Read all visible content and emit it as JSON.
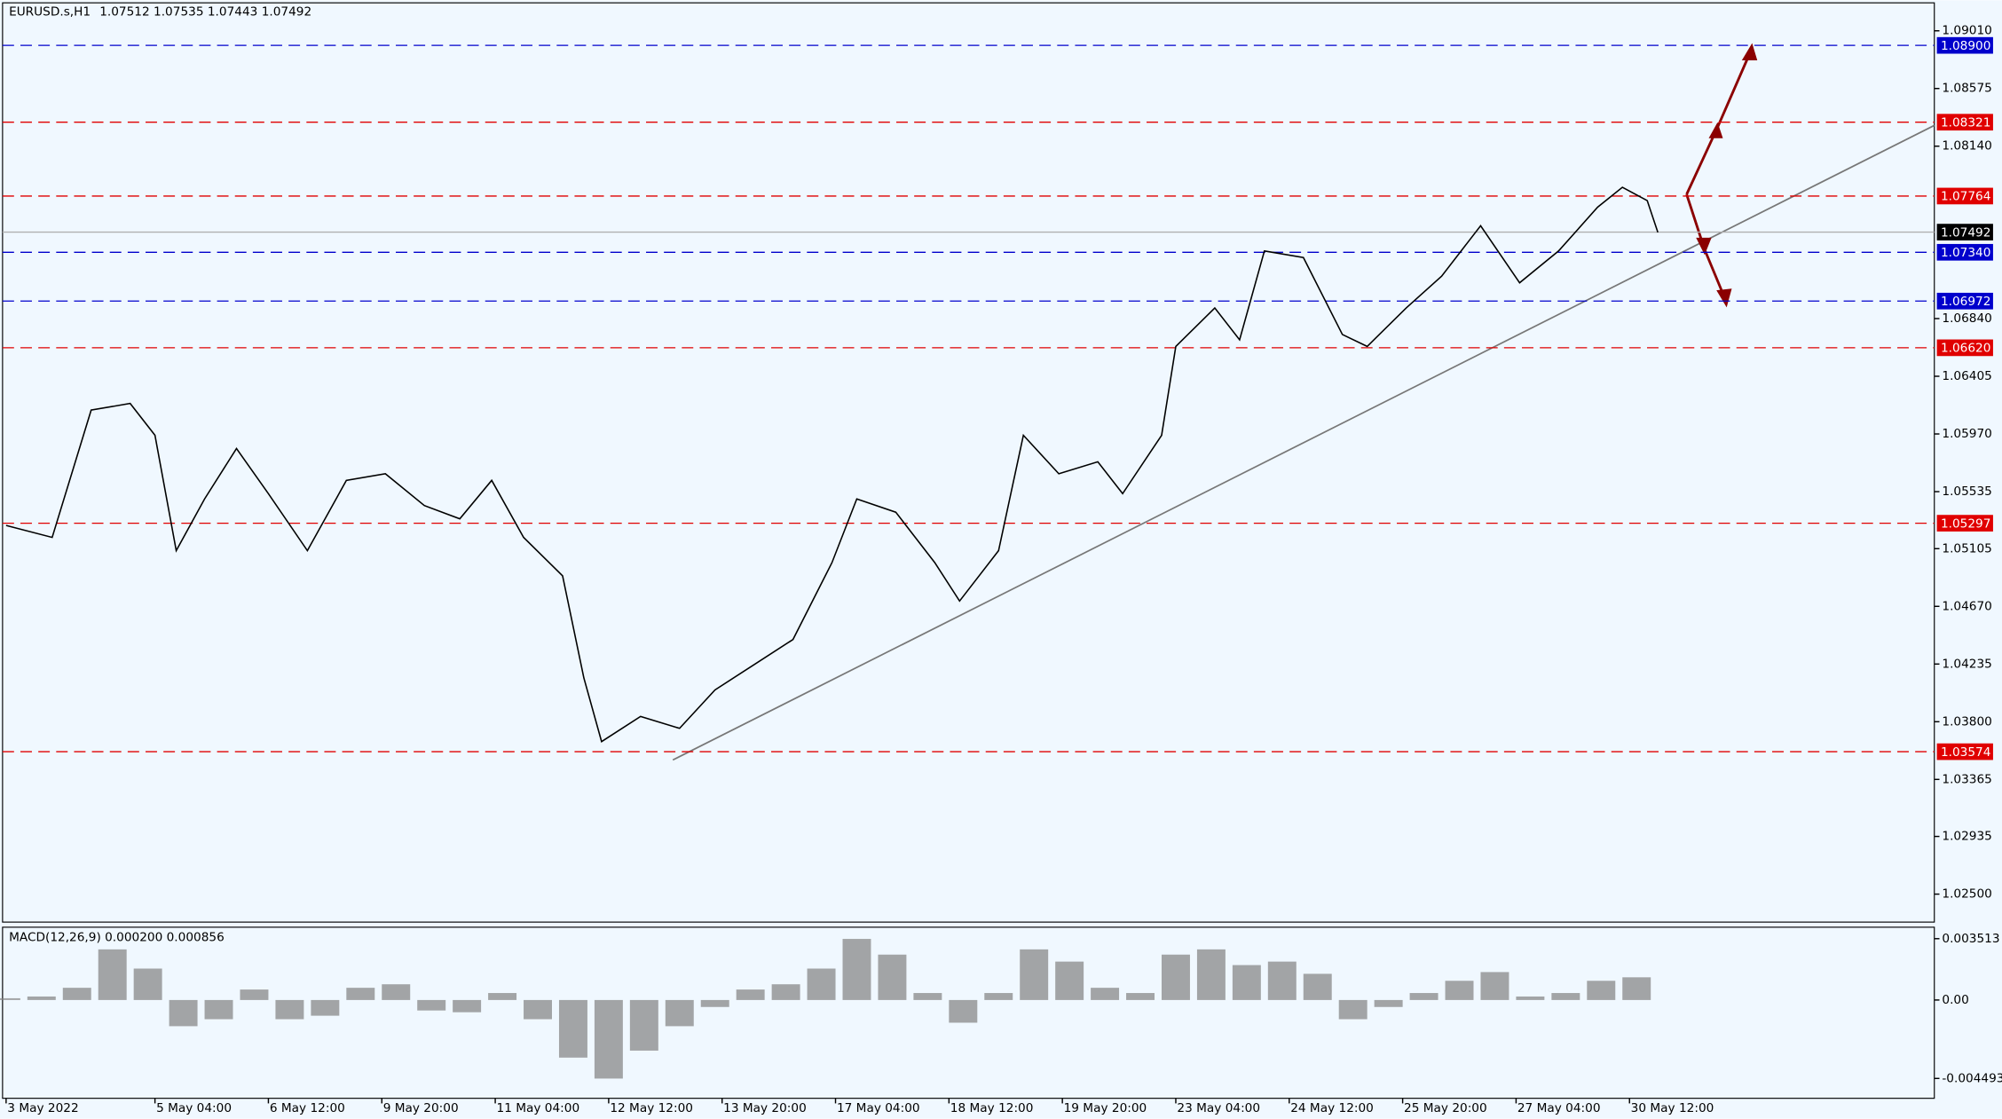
{
  "chart_data": [
    {
      "type": "line",
      "title": "EURUSD.s,H1",
      "ohlc": [
        1.07512,
        1.07535,
        1.07443,
        1.07492
      ],
      "xlim": [
        -1,
        544
      ],
      "ylim": [
        1.02289,
        1.09221
      ],
      "xticks": [
        {
          "value": 0,
          "label": "3 May 2022"
        },
        {
          "value": 42,
          "label": "5 May 04:00"
        },
        {
          "value": 74,
          "label": "6 May 12:00"
        },
        {
          "value": 106,
          "label": "9 May 20:00"
        },
        {
          "value": 138,
          "label": "11 May 04:00"
        },
        {
          "value": 170,
          "label": "12 May 12:00"
        },
        {
          "value": 202,
          "label": "13 May 20:00"
        },
        {
          "value": 234,
          "label": "17 May 04:00"
        },
        {
          "value": 266,
          "label": "18 May 12:00"
        },
        {
          "value": 298,
          "label": "19 May 20:00"
        },
        {
          "value": 330,
          "label": "23 May 04:00"
        },
        {
          "value": 362,
          "label": "24 May 12:00"
        },
        {
          "value": 394,
          "label": "25 May 20:00"
        },
        {
          "value": 426,
          "label": "27 May 04:00"
        },
        {
          "value": 458,
          "label": "30 May 12:00"
        }
      ],
      "yticks": [
        {
          "value": 1.0901,
          "label": "1.09010"
        },
        1.08575,
        {
          "value": 1.0814,
          "label": "1.08140"
        },
        {
          "value": 1.0684,
          "label": "1.06840"
        },
        1.06405,
        {
          "value": 1.0597,
          "label": "1.05970"
        },
        1.05535,
        1.05105,
        {
          "value": 1.0467,
          "label": "1.04670"
        },
        1.04235,
        {
          "value": 1.038,
          "label": "1.03800"
        },
        1.03365,
        1.02935,
        {
          "value": 1.025,
          "label": "1.02500"
        }
      ],
      "levels": [
        {
          "value": 1.089,
          "label": "1.08900",
          "color": "#0000cc"
        },
        {
          "value": 1.08321,
          "label": "1.08321",
          "color": "#e00000"
        },
        {
          "value": 1.07764,
          "label": "1.07764",
          "color": "#e00000"
        },
        {
          "value": 1.07492,
          "label": "1.07492",
          "color": "#000000"
        },
        {
          "value": 1.0734,
          "label": "1.07340",
          "color": "#0000cc"
        },
        {
          "value": 1.06972,
          "label": "1.06972",
          "color": "#0000cc"
        },
        {
          "value": 1.0662,
          "label": "1.06620",
          "color": "#e00000"
        },
        {
          "value": 1.05297,
          "label": "1.05297",
          "color": "#e00000"
        },
        {
          "value": 1.03574,
          "label": "1.03574",
          "color": "#e00000"
        }
      ],
      "series": [
        {
          "color": "#000000",
          "x": [
            0,
            13,
            24,
            35,
            42,
            48,
            56,
            65,
            74,
            85,
            96,
            107,
            118,
            128,
            137,
            146,
            157,
            163,
            168,
            179,
            190,
            200,
            211,
            222,
            233,
            240,
            251,
            262,
            269,
            280,
            287,
            297,
            308,
            315,
            326,
            330,
            341,
            348,
            355,
            366,
            377,
            384,
            395,
            405,
            416,
            427,
            438,
            449,
            456,
            463,
            466
          ],
          "values": [
            1.0528,
            1.0519,
            1.0615,
            1.062,
            1.0596,
            1.0509,
            1.0548,
            1.0586,
            1.0552,
            1.0509,
            1.0562,
            1.0567,
            1.0543,
            1.0533,
            1.0562,
            1.0519,
            1.049,
            1.0413,
            1.0365,
            1.0384,
            1.0375,
            1.0404,
            1.0423,
            1.0442,
            1.05,
            1.0548,
            1.0538,
            1.05,
            1.0471,
            1.0509,
            1.0596,
            1.0567,
            1.0576,
            1.0552,
            1.0596,
            1.0663,
            1.0692,
            1.0668,
            1.0735,
            1.073,
            1.0672,
            1.0663,
            1.0692,
            1.0716,
            1.0754,
            1.0711,
            1.0735,
            1.0768,
            1.0783,
            1.0773,
            1.0749
          ]
        }
      ]
    },
    {
      "type": "bar",
      "title": "MACD(12,26,9) 0.000200 0.000856",
      "xlim": [
        -1,
        544
      ],
      "ylim": [
        -0.00563,
        0.00417
      ],
      "yticks": [
        0.003513,
        {
          "value": 0,
          "label": "0.00"
        },
        -0.004493
      ],
      "series": [
        {
          "color": "#808080",
          "x": [
            0,
            10,
            20,
            30,
            40,
            50,
            60,
            70,
            80,
            90,
            100,
            110,
            120,
            130,
            140,
            150,
            160,
            170,
            180,
            190,
            200,
            210,
            220,
            230,
            240,
            250,
            260,
            270,
            280,
            290,
            300,
            310,
            320,
            330,
            340,
            350,
            360,
            370,
            380,
            390,
            400,
            410,
            420,
            430,
            440,
            450,
            460
          ],
          "values": [
            0.0001,
            0.0002,
            0.0007,
            0.0029,
            0.0018,
            -0.0015,
            -0.0011,
            0.0006,
            -0.0011,
            -0.0009,
            0.0007,
            0.0009,
            -0.0006,
            -0.0007,
            0.0004,
            -0.0011,
            -0.0033,
            -0.0045,
            -0.0029,
            -0.0015,
            -0.0004,
            0.0006,
            0.0009,
            0.0018,
            0.0035,
            0.0026,
            0.0004,
            -0.0013,
            0.0004,
            0.0029,
            0.0022,
            0.0007,
            0.0004,
            0.0026,
            0.0029,
            0.002,
            0.0022,
            0.0015,
            -0.0011,
            -0.0004,
            0.0004,
            0.0011,
            0.0016,
            0.0002,
            0.0004,
            0.0011,
            0.0013
          ]
        }
      ]
    }
  ]
}
